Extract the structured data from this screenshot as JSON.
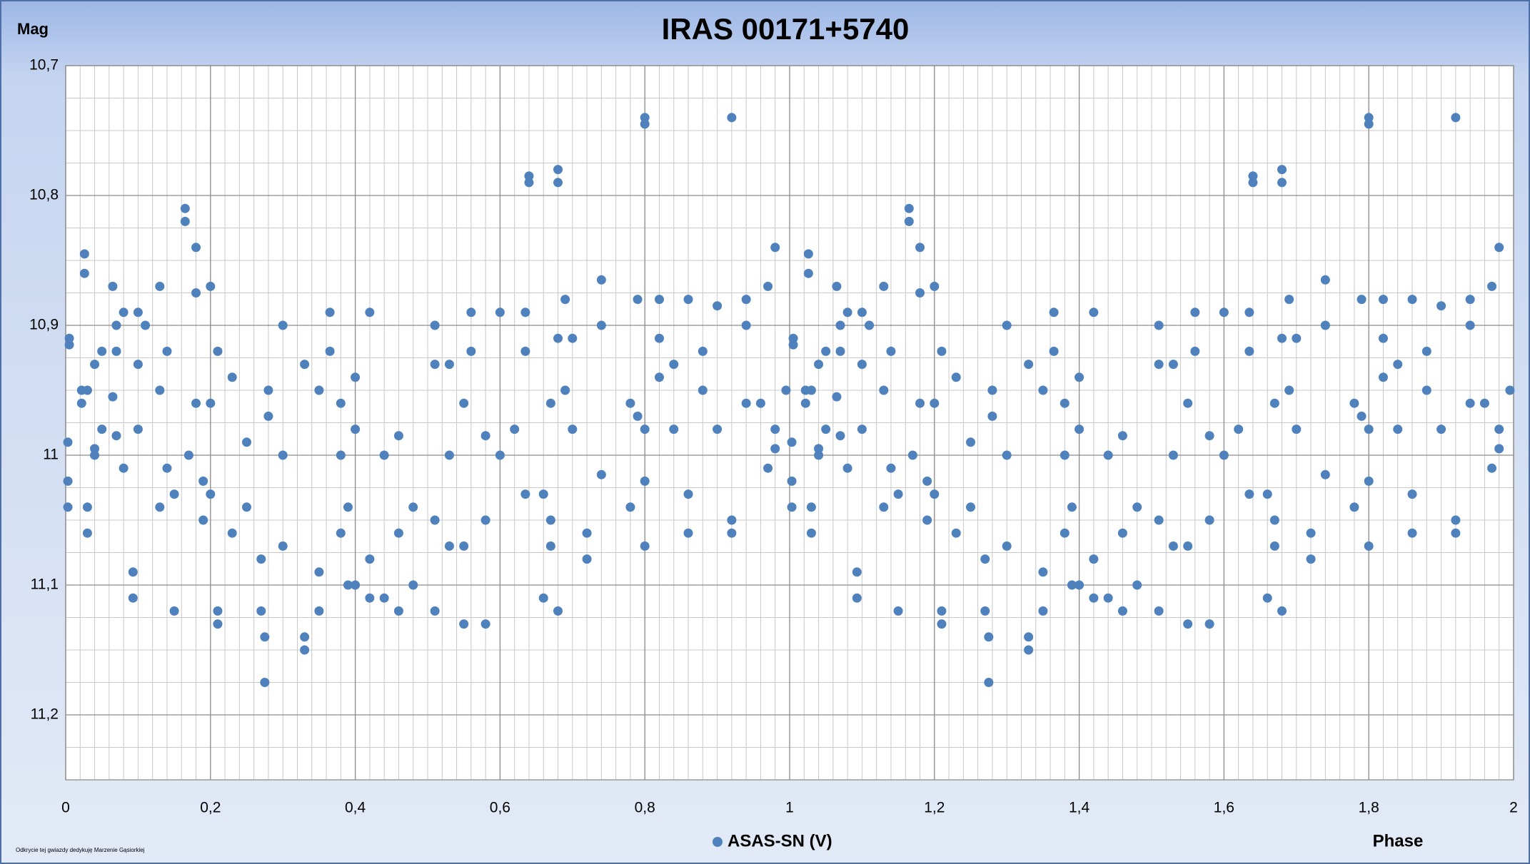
{
  "chart_data": {
    "type": "scatter",
    "title": "IRAS  00171+5740",
    "y_label": "Mag",
    "x_label": "Phase",
    "note": "Odkrycie tej gwiazdy dedykuję Marzenie Gąsiorkiej",
    "xlim": [
      0,
      2
    ],
    "ylim": [
      10.7,
      11.25
    ],
    "y_inverted": true,
    "grid": true,
    "minor_grid": {
      "x": 0.02,
      "y": 0.025
    },
    "legend": "bottom",
    "xticks": [
      0,
      {
        "value": 0.2,
        "label": "0,2"
      },
      {
        "value": 0.4,
        "label": "0,4"
      },
      {
        "value": 0.6,
        "label": "0,6"
      },
      {
        "value": 0.8,
        "label": "0,8"
      },
      1,
      {
        "value": 1.2,
        "label": "1,2"
      },
      {
        "value": 1.4,
        "label": "1,4"
      },
      {
        "value": 1.6,
        "label": "1,6"
      },
      {
        "value": 1.8,
        "label": "1,8"
      },
      2
    ],
    "yticks": [
      {
        "value": 10.7,
        "label": "10,7"
      },
      {
        "value": 10.8,
        "label": "10,8"
      },
      {
        "value": 10.9,
        "label": "10,9"
      },
      11,
      {
        "value": 11.1,
        "label": "11,1"
      },
      {
        "value": 11.2,
        "label": "11,2"
      }
    ],
    "series": [
      {
        "name": "ASAS-SN (V)",
        "color": "#4f81bd",
        "x": [
          0.003,
          0.003,
          0.003,
          0.005,
          0.005,
          0.022,
          0.022,
          0.026,
          0.026,
          0.03,
          0.03,
          0.03,
          0.04,
          0.04,
          0.04,
          0.05,
          0.05,
          0.065,
          0.065,
          0.07,
          0.07,
          0.07,
          0.08,
          0.08,
          0.093,
          0.093,
          0.1,
          0.1,
          0.1,
          0.11,
          0.13,
          0.13,
          0.13,
          0.14,
          0.14,
          0.15,
          0.15,
          0.165,
          0.165,
          0.17,
          0.18,
          0.18,
          0.18,
          0.19,
          0.19,
          0.2,
          0.2,
          0.2,
          0.21,
          0.21,
          0.21,
          0.23,
          0.23,
          0.25,
          0.25,
          0.27,
          0.27,
          0.275,
          0.275,
          0.28,
          0.28,
          0.3,
          0.3,
          0.3,
          0.33,
          0.33,
          0.33,
          0.35,
          0.35,
          0.35,
          0.365,
          0.365,
          0.38,
          0.38,
          0.38,
          0.39,
          0.39,
          0.4,
          0.4,
          0.4,
          0.42,
          0.42,
          0.42,
          0.44,
          0.44,
          0.46,
          0.46,
          0.46,
          0.48,
          0.48,
          0.51,
          0.51,
          0.51,
          0.51,
          0.53,
          0.53,
          0.53,
          0.55,
          0.55,
          0.55,
          0.56,
          0.56,
          0.58,
          0.58,
          0.58,
          0.6,
          0.6,
          0.62,
          0.635,
          0.635,
          0.635,
          0.64,
          0.64,
          0.66,
          0.66,
          0.67,
          0.67,
          0.67,
          0.68,
          0.68,
          0.68,
          0.68,
          0.69,
          0.69,
          0.7,
          0.7,
          0.72,
          0.72,
          0.74,
          0.74,
          0.74,
          0.78,
          0.78,
          0.79,
          0.79,
          0.8,
          0.8,
          0.8,
          0.8,
          0.8,
          0.82,
          0.82,
          0.82,
          0.84,
          0.84,
          0.86,
          0.86,
          0.86,
          0.88,
          0.88,
          0.9,
          0.9,
          0.92,
          0.92,
          0.92,
          0.94,
          0.94,
          0.94,
          0.96,
          0.97,
          0.97,
          0.98,
          0.98,
          0.98,
          0.995,
          1.003,
          1.003,
          1.003,
          1.005,
          1.005,
          1.022,
          1.022,
          1.026,
          1.026,
          1.03,
          1.03,
          1.03,
          1.04,
          1.04,
          1.04,
          1.05,
          1.05,
          1.065,
          1.065,
          1.07,
          1.07,
          1.07,
          1.08,
          1.08,
          1.093,
          1.093,
          1.1,
          1.1,
          1.1,
          1.11,
          1.13,
          1.13,
          1.13,
          1.14,
          1.14,
          1.15,
          1.15,
          1.165,
          1.165,
          1.17,
          1.18,
          1.18,
          1.18,
          1.19,
          1.19,
          1.2,
          1.2,
          1.2,
          1.21,
          1.21,
          1.21,
          1.23,
          1.23,
          1.25,
          1.25,
          1.27,
          1.27,
          1.275,
          1.275,
          1.28,
          1.28,
          1.3,
          1.3,
          1.3,
          1.33,
          1.33,
          1.33,
          1.35,
          1.35,
          1.35,
          1.365,
          1.365,
          1.38,
          1.38,
          1.38,
          1.39,
          1.39,
          1.4,
          1.4,
          1.4,
          1.42,
          1.42,
          1.42,
          1.44,
          1.44,
          1.46,
          1.46,
          1.46,
          1.48,
          1.48,
          1.51,
          1.51,
          1.51,
          1.51,
          1.53,
          1.53,
          1.53,
          1.55,
          1.55,
          1.55,
          1.56,
          1.56,
          1.58,
          1.58,
          1.58,
          1.6,
          1.6,
          1.62,
          1.635,
          1.635,
          1.635,
          1.64,
          1.64,
          1.66,
          1.66,
          1.67,
          1.67,
          1.67,
          1.68,
          1.68,
          1.68,
          1.68,
          1.69,
          1.69,
          1.7,
          1.7,
          1.72,
          1.72,
          1.74,
          1.74,
          1.74,
          1.78,
          1.78,
          1.79,
          1.79,
          1.8,
          1.8,
          1.8,
          1.8,
          1.8,
          1.82,
          1.82,
          1.82,
          1.84,
          1.84,
          1.86,
          1.86,
          1.86,
          1.88,
          1.88,
          1.9,
          1.9,
          1.92,
          1.92,
          1.92,
          1.94,
          1.94,
          1.94,
          1.96,
          1.97,
          1.97,
          1.98,
          1.98,
          1.98,
          1.995
        ],
        "values": [
          11.02,
          11.04,
          10.99,
          10.91,
          10.915,
          10.95,
          10.96,
          10.845,
          10.86,
          10.95,
          11.06,
          11.04,
          10.93,
          10.995,
          11.0,
          10.92,
          10.98,
          10.87,
          10.955,
          10.9,
          10.92,
          10.985,
          10.89,
          11.01,
          11.09,
          11.11,
          10.89,
          10.93,
          10.98,
          10.9,
          10.87,
          10.95,
          11.04,
          10.92,
          11.01,
          11.03,
          11.12,
          10.81,
          10.82,
          11.0,
          10.84,
          10.875,
          10.96,
          11.05,
          11.02,
          10.87,
          10.96,
          11.03,
          10.92,
          11.12,
          11.13,
          10.94,
          11.06,
          10.99,
          11.04,
          11.08,
          11.12,
          11.14,
          11.175,
          10.95,
          10.97,
          10.9,
          11.0,
          11.07,
          10.93,
          11.14,
          11.15,
          10.95,
          11.09,
          11.12,
          10.89,
          10.92,
          10.96,
          11.0,
          11.06,
          11.1,
          11.04,
          10.94,
          10.98,
          11.1,
          10.89,
          11.08,
          11.11,
          11.0,
          11.11,
          10.985,
          11.06,
          11.12,
          11.04,
          11.1,
          10.9,
          10.93,
          11.05,
          11.12,
          10.93,
          11.0,
          11.07,
          10.96,
          11.07,
          11.13,
          10.89,
          10.92,
          10.985,
          11.05,
          11.13,
          10.89,
          11.0,
          10.98,
          10.89,
          10.92,
          11.03,
          10.785,
          10.79,
          11.11,
          11.03,
          10.96,
          11.05,
          11.07,
          10.78,
          10.79,
          10.91,
          11.12,
          10.88,
          10.95,
          10.91,
          10.98,
          11.06,
          11.08,
          10.865,
          10.9,
          11.015,
          10.96,
          11.04,
          10.88,
          10.97,
          10.74,
          10.745,
          10.98,
          11.02,
          11.07,
          10.88,
          10.91,
          10.94,
          10.93,
          10.98,
          10.88,
          11.03,
          11.06,
          10.92,
          10.95,
          10.885,
          10.98,
          10.74,
          11.05,
          11.06,
          10.88,
          10.9,
          10.96,
          10.96,
          10.87,
          11.01,
          10.84,
          10.98,
          10.995,
          10.95,
          11.02,
          11.04,
          10.99,
          10.91,
          10.915,
          10.95,
          10.96,
          10.845,
          10.86,
          10.95,
          11.06,
          11.04,
          10.93,
          10.995,
          11.0,
          10.92,
          10.98,
          10.87,
          10.955,
          10.9,
          10.92,
          10.985,
          10.89,
          11.01,
          11.09,
          11.11,
          10.89,
          10.93,
          10.98,
          10.9,
          10.87,
          10.95,
          11.04,
          10.92,
          11.01,
          11.03,
          11.12,
          10.81,
          10.82,
          11.0,
          10.84,
          10.875,
          10.96,
          11.05,
          11.02,
          10.87,
          10.96,
          11.03,
          10.92,
          11.12,
          11.13,
          10.94,
          11.06,
          10.99,
          11.04,
          11.08,
          11.12,
          11.14,
          11.175,
          10.95,
          10.97,
          10.9,
          11.0,
          11.07,
          10.93,
          11.14,
          11.15,
          10.95,
          11.09,
          11.12,
          10.89,
          10.92,
          10.96,
          11.0,
          11.06,
          11.1,
          11.04,
          10.94,
          10.98,
          11.1,
          10.89,
          11.08,
          11.11,
          11.0,
          11.11,
          10.985,
          11.06,
          11.12,
          11.04,
          11.1,
          10.9,
          10.93,
          11.05,
          11.12,
          10.93,
          11.0,
          11.07,
          10.96,
          11.07,
          11.13,
          10.89,
          10.92,
          10.985,
          11.05,
          11.13,
          10.89,
          11.0,
          10.98,
          10.89,
          10.92,
          11.03,
          10.785,
          10.79,
          11.11,
          11.03,
          10.96,
          11.05,
          11.07,
          10.78,
          10.79,
          10.91,
          11.12,
          10.88,
          10.95,
          10.91,
          10.98,
          11.06,
          11.08,
          10.865,
          10.9,
          11.015,
          10.96,
          11.04,
          10.88,
          10.97,
          10.74,
          10.745,
          10.98,
          11.02,
          11.07,
          10.88,
          10.91,
          10.94,
          10.93,
          10.98,
          10.88,
          11.03,
          11.06,
          10.92,
          10.95,
          10.885,
          10.98,
          10.74,
          11.05,
          11.06,
          10.88,
          10.9,
          10.96,
          10.96,
          10.87,
          11.01,
          10.84,
          10.98,
          10.995,
          10.95
        ]
      }
    ]
  }
}
